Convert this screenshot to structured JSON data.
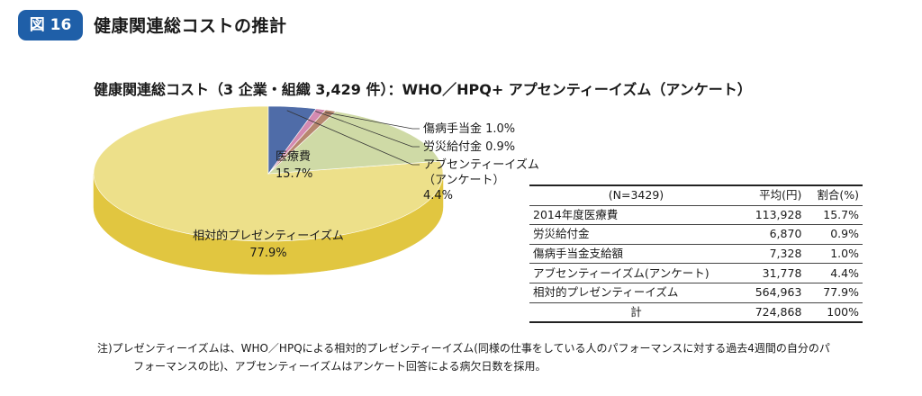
{
  "header": {
    "badge": "図 16",
    "title": "健康関連総コストの推計"
  },
  "chart_data": {
    "type": "pie",
    "title": "健康関連総コスト（3 企業・組織 3,429 件）：WHO／HPQ+ アプセンティーイズム（アンケート）",
    "slices": [
      {
        "label": "相対的プレゼンティーイズム",
        "value": 77.9,
        "value_label": "77.9%",
        "color": "#ede08a",
        "side": "#e1c640"
      },
      {
        "label": "医療費",
        "value": 15.7,
        "value_label": "15.7%",
        "color": "#cfdaa6",
        "side": "#b2bf7a"
      },
      {
        "label": "傷病手当金",
        "value": 1.0,
        "value_label": "1.0%",
        "color": "#b7876f",
        "side": "#8e604c"
      },
      {
        "label": "労災給付金",
        "value": 0.9,
        "value_label": "0.9%",
        "color": "#d48ab1",
        "side": "#a8608a"
      },
      {
        "label": "アブセンティーイズム",
        "label2": "（アンケート）",
        "value": 4.4,
        "value_label": "4.4%",
        "color": "#4f6ca8",
        "side": "#3a5185"
      }
    ]
  },
  "table": {
    "headers": [
      "(N=3429)",
      "平均(円)",
      "割合(%)"
    ],
    "rows": [
      [
        "2014年度医療費",
        "113,928",
        "15.7%"
      ],
      [
        "労災給付金",
        "6,870",
        "0.9%"
      ],
      [
        "傷病手当金支給額",
        "7,328",
        "1.0%"
      ],
      [
        "アブセンティーイズム(アンケート)",
        "31,778",
        "4.4%"
      ],
      [
        "相対的プレゼンティーイズム",
        "564,963",
        "77.9%"
      ]
    ],
    "total": [
      "計",
      "724,868",
      "100%"
    ]
  },
  "note": {
    "line1": "注)プレゼンティーイズムは、WHO／HPQによる相対的プレゼンティーイズム(同様の仕事をしている人のパフォーマンスに対する過去4週間の自分のパ",
    "line2": "フォーマンスの比)、アブセンティーイズムはアンケート回答による病欠日数を採用。"
  }
}
